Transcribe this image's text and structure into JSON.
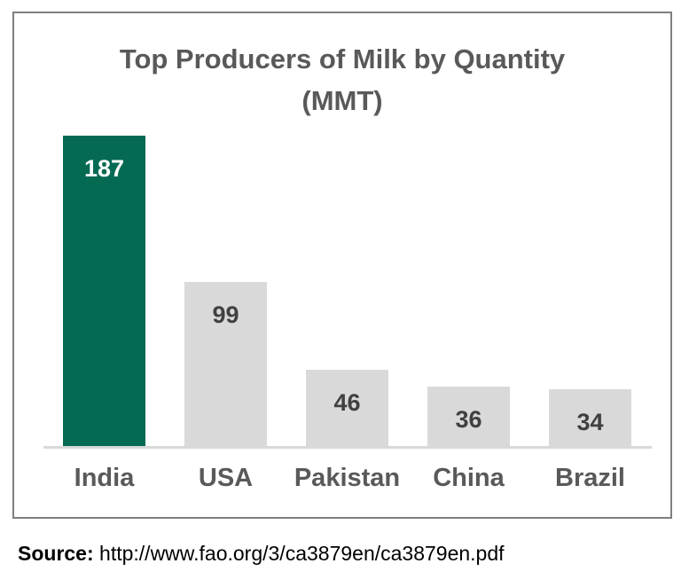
{
  "chart_data": {
    "type": "bar",
    "title": "Top Producers of Milk by Quantity (MMT)",
    "title_lines": [
      "Top Producers of Milk by Quantity",
      "(MMT)"
    ],
    "categories": [
      "India",
      "USA",
      "Pakistan",
      "China",
      "Brazil"
    ],
    "values": [
      187,
      99,
      46,
      36,
      34
    ],
    "unit": "MMT",
    "highlighted_category": "India",
    "bar_colors": [
      "#046A52",
      "#D9D9D9",
      "#D9D9D9",
      "#D9D9D9",
      "#D9D9D9"
    ],
    "value_label_colors": [
      "#FFFFFF",
      "#404040",
      "#404040",
      "#404040",
      "#404040"
    ],
    "axis_line_color": "#D9D9D9",
    "grid": false,
    "legend": false,
    "data_labels": "inside-end",
    "ylim": [
      0,
      187
    ],
    "xlabel": "",
    "ylabel": ""
  },
  "colors": {
    "title": "#595959",
    "category_labels": "#595959",
    "frame_border": "#7F7F7F",
    "background": "#FFFFFF"
  },
  "source": {
    "label": "Source:",
    "text": " http://www.fao.org/3/ca3879en/ca3879en.pdf"
  }
}
